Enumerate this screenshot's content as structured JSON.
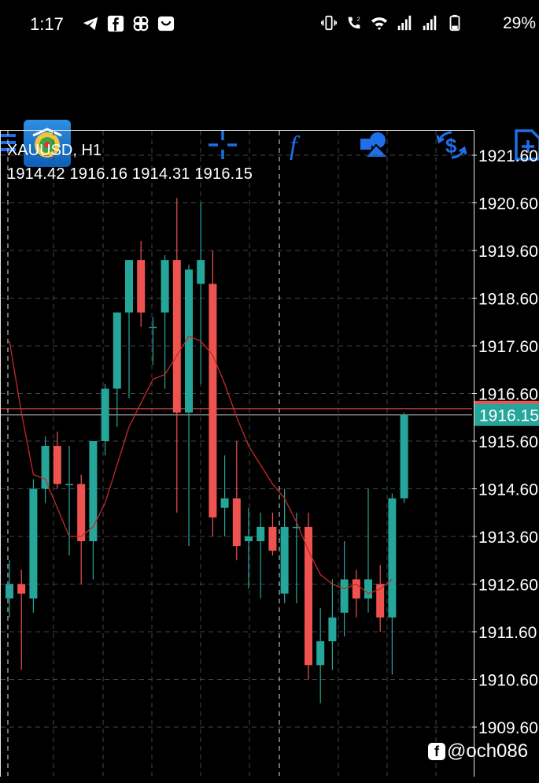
{
  "status_bar": {
    "time": "1:17",
    "battery": "29%",
    "left_icons": [
      "telegram-icon",
      "facebook-icon",
      "pinwheel-icon",
      "app-icon"
    ],
    "right_icons": [
      "vibrate-icon",
      "wifi-calling-icon",
      "wifi-icon",
      "signal-icon",
      "signal-icon",
      "battery-icon"
    ]
  },
  "toolbar": {
    "icons": [
      "menu-icon",
      "app-logo",
      "crosshair-icon",
      "indicators-icon",
      "objects-icon",
      "trade-icon",
      "add-chart-icon"
    ],
    "accent": "#1e6fe8"
  },
  "chart_data": {
    "type": "candlestick",
    "symbol": "XAUUSD, H1",
    "ohlc": "1914.42 1916.16 1914.31 1916.15",
    "y_ticks": [
      "1921.60",
      "1920.60",
      "1919.60",
      "1918.60",
      "1917.60",
      "1916.60",
      "1915.60",
      "1914.60",
      "1913.60",
      "1912.60",
      "1911.60",
      "1910.60",
      "1909.60"
    ],
    "y_tick_values": [
      1921.6,
      1920.6,
      1919.6,
      1918.6,
      1917.6,
      1916.6,
      1915.6,
      1914.6,
      1913.6,
      1912.6,
      1911.6,
      1910.6,
      1909.6
    ],
    "ylim": [
      1909.0,
      1922.2
    ],
    "bid_line": 1916.15,
    "bid_label": "1916.15",
    "upper_line": 1916.28,
    "bull_color": "#26a69a",
    "bear_color": "#ef5350",
    "ma_color": "#c62828",
    "grid": true,
    "candles": [
      {
        "o": 1912.3,
        "h": 1913.1,
        "l": 1911.9,
        "c": 1912.6
      },
      {
        "o": 1912.6,
        "h": 1912.9,
        "l": 1910.8,
        "c": 1912.4
      },
      {
        "o": 1912.3,
        "h": 1914.8,
        "l": 1912.0,
        "c": 1914.6
      },
      {
        "o": 1914.6,
        "h": 1915.7,
        "l": 1914.3,
        "c": 1915.5
      },
      {
        "o": 1915.5,
        "h": 1915.8,
        "l": 1914.6,
        "c": 1914.7
      },
      {
        "o": 1914.7,
        "h": 1915.5,
        "l": 1913.2,
        "c": 1914.7
      },
      {
        "o": 1914.7,
        "h": 1914.9,
        "l": 1912.6,
        "c": 1913.5
      },
      {
        "o": 1913.5,
        "h": 1915.6,
        "l": 1912.7,
        "c": 1915.6
      },
      {
        "o": 1915.6,
        "h": 1916.8,
        "l": 1915.3,
        "c": 1916.7
      },
      {
        "o": 1916.7,
        "h": 1918.3,
        "l": 1915.9,
        "c": 1918.3
      },
      {
        "o": 1918.3,
        "h": 1919.4,
        "l": 1916.5,
        "c": 1919.4
      },
      {
        "o": 1919.4,
        "h": 1919.8,
        "l": 1918.0,
        "c": 1918.3
      },
      {
        "o": 1918.0,
        "h": 1918.2,
        "l": 1917.2,
        "c": 1918.0
      },
      {
        "o": 1918.3,
        "h": 1919.5,
        "l": 1916.7,
        "c": 1919.4
      },
      {
        "o": 1919.4,
        "h": 1920.7,
        "l": 1914.1,
        "c": 1916.2
      },
      {
        "o": 1916.2,
        "h": 1919.3,
        "l": 1913.4,
        "c": 1919.2
      },
      {
        "o": 1918.9,
        "h": 1920.6,
        "l": 1916.8,
        "c": 1919.4
      },
      {
        "o": 1918.9,
        "h": 1919.6,
        "l": 1913.6,
        "c": 1914.0
      },
      {
        "o": 1914.2,
        "h": 1915.3,
        "l": 1913.6,
        "c": 1914.4
      },
      {
        "o": 1914.4,
        "h": 1915.6,
        "l": 1913.1,
        "c": 1913.4
      },
      {
        "o": 1913.5,
        "h": 1914.2,
        "l": 1912.5,
        "c": 1913.6
      },
      {
        "o": 1913.5,
        "h": 1914.1,
        "l": 1912.3,
        "c": 1913.8
      },
      {
        "o": 1913.8,
        "h": 1914.1,
        "l": 1913.2,
        "c": 1913.3
      },
      {
        "o": 1912.4,
        "h": 1914.6,
        "l": 1912.2,
        "c": 1913.8
      },
      {
        "o": 1913.8,
        "h": 1914.1,
        "l": 1912.2,
        "c": 1913.8
      },
      {
        "o": 1913.8,
        "h": 1914.1,
        "l": 1910.6,
        "c": 1910.9
      },
      {
        "o": 1910.9,
        "h": 1912.1,
        "l": 1910.1,
        "c": 1911.4
      },
      {
        "o": 1911.4,
        "h": 1912.7,
        "l": 1910.8,
        "c": 1911.9
      },
      {
        "o": 1912.0,
        "h": 1913.5,
        "l": 1911.5,
        "c": 1912.7
      },
      {
        "o": 1912.7,
        "h": 1912.9,
        "l": 1911.9,
        "c": 1912.3
      },
      {
        "o": 1912.3,
        "h": 1914.6,
        "l": 1912.0,
        "c": 1912.7
      },
      {
        "o": 1912.6,
        "h": 1913.0,
        "l": 1911.6,
        "c": 1911.9
      },
      {
        "o": 1911.9,
        "h": 1914.5,
        "l": 1910.7,
        "c": 1914.4
      },
      {
        "o": 1914.4,
        "h": 1916.2,
        "l": 1914.3,
        "c": 1916.15
      }
    ],
    "ma": [
      1917.7,
      1916.2,
      1914.9,
      1914.8,
      1914.2,
      1913.6,
      1913.6,
      1913.8,
      1914.3,
      1915.1,
      1915.9,
      1916.4,
      1916.9,
      1917.0,
      1917.4,
      1917.8,
      1917.7,
      1917.4,
      1916.8,
      1916.1,
      1915.5,
      1915.1,
      1914.7,
      1914.4,
      1913.9,
      1913.3,
      1912.8,
      1912.6,
      1912.5,
      1912.6,
      1912.4,
      1912.5,
      1912.7
    ]
  },
  "watermark": "@och086"
}
